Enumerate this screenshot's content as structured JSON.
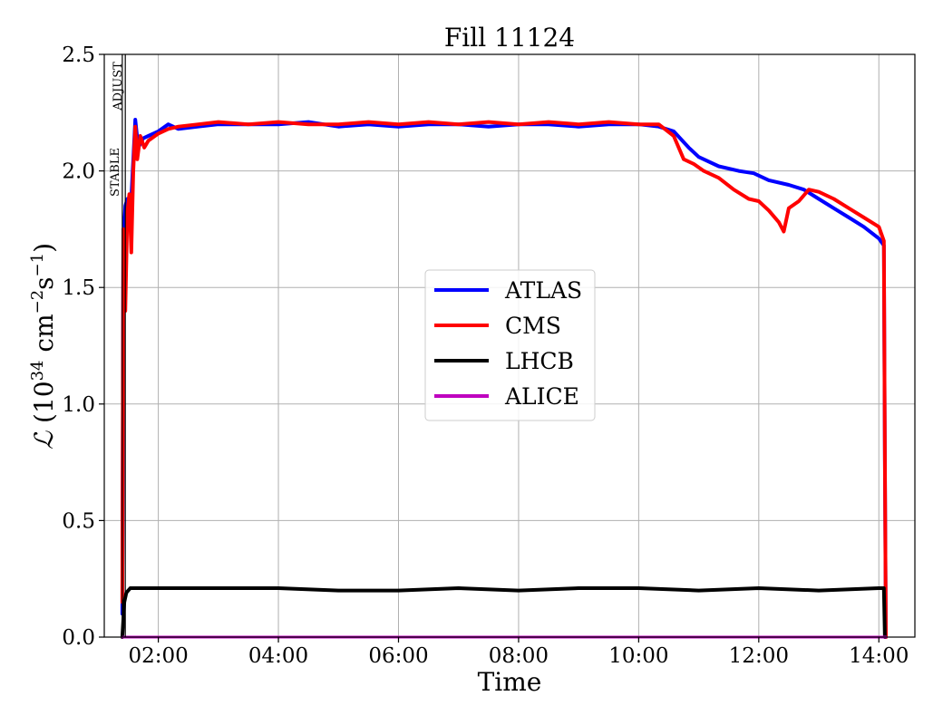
{
  "chart_data": {
    "type": "line",
    "title": "Fill 11124",
    "xlabel": "Time",
    "ylabel_symbol": "ℒ",
    "ylabel_unit_open": " (10",
    "ylabel_unit_exp1": "34",
    "ylabel_unit_mid": " cm",
    "ylabel_unit_exp2": "−2",
    "ylabel_unit_s": "s",
    "ylabel_unit_exp3": "−1",
    "ylabel_unit_close": ")",
    "xlim": [
      "01:06",
      "14:36"
    ],
    "ylim": [
      0,
      2.5
    ],
    "grid": true,
    "legend_position": "center-right",
    "x_ticks": [
      "02:00",
      "04:00",
      "06:00",
      "08:00",
      "10:00",
      "12:00",
      "14:00"
    ],
    "y_ticks": [
      "0.0",
      "0.5",
      "1.0",
      "1.5",
      "2.0",
      "2.5"
    ],
    "markers": [
      {
        "label": "ADJUST",
        "x": "01:27"
      },
      {
        "label": "STABLE",
        "x": "01:24"
      }
    ],
    "series": [
      {
        "name": "ATLAS",
        "color": "#0000ff",
        "x": [
          "01:24",
          "01:25",
          "01:27",
          "01:29",
          "01:32",
          "01:35",
          "01:37",
          "01:40",
          "01:45",
          "01:50",
          "02:00",
          "02:10",
          "02:20",
          "02:40",
          "03:00",
          "03:30",
          "04:00",
          "04:30",
          "05:00",
          "05:30",
          "06:00",
          "06:30",
          "07:00",
          "07:30",
          "08:00",
          "08:30",
          "09:00",
          "09:30",
          "10:00",
          "10:20",
          "10:35",
          "10:50",
          "11:00",
          "11:20",
          "11:40",
          "11:55",
          "12:10",
          "12:30",
          "12:45",
          "13:00",
          "13:15",
          "13:30",
          "13:45",
          "14:00",
          "14:05",
          "14:06",
          "14:07"
        ],
        "y": [
          0.1,
          1.7,
          1.85,
          1.88,
          1.8,
          2.05,
          2.22,
          2.1,
          2.14,
          2.15,
          2.17,
          2.2,
          2.18,
          2.19,
          2.2,
          2.2,
          2.2,
          2.21,
          2.19,
          2.2,
          2.19,
          2.2,
          2.2,
          2.19,
          2.2,
          2.2,
          2.19,
          2.2,
          2.2,
          2.19,
          2.17,
          2.1,
          2.06,
          2.02,
          2.0,
          1.99,
          1.96,
          1.94,
          1.92,
          1.88,
          1.84,
          1.8,
          1.76,
          1.71,
          1.68,
          0.76,
          0.0
        ]
      },
      {
        "name": "CMS",
        "color": "#ff0000",
        "x": [
          "01:24",
          "01:25",
          "01:27",
          "01:29",
          "01:31",
          "01:33",
          "01:35",
          "01:37",
          "01:39",
          "01:42",
          "01:46",
          "01:50",
          "02:00",
          "02:10",
          "02:20",
          "02:40",
          "03:00",
          "03:30",
          "04:00",
          "04:30",
          "05:00",
          "05:30",
          "06:00",
          "06:30",
          "07:00",
          "07:30",
          "08:00",
          "08:30",
          "09:00",
          "09:30",
          "10:00",
          "10:20",
          "10:35",
          "10:45",
          "10:55",
          "11:05",
          "11:20",
          "11:35",
          "11:50",
          "12:00",
          "12:10",
          "12:20",
          "12:25",
          "12:30",
          "12:40",
          "12:50",
          "13:00",
          "13:15",
          "13:30",
          "13:45",
          "14:00",
          "14:05",
          "14:06",
          "14:07"
        ],
        "y": [
          0.15,
          1.75,
          1.4,
          1.82,
          1.9,
          1.65,
          2.0,
          2.19,
          2.05,
          2.15,
          2.1,
          2.13,
          2.16,
          2.18,
          2.19,
          2.2,
          2.21,
          2.2,
          2.21,
          2.2,
          2.2,
          2.21,
          2.2,
          2.21,
          2.2,
          2.21,
          2.2,
          2.21,
          2.2,
          2.21,
          2.2,
          2.2,
          2.15,
          2.05,
          2.03,
          2.0,
          1.97,
          1.92,
          1.88,
          1.87,
          1.83,
          1.78,
          1.74,
          1.84,
          1.87,
          1.92,
          1.91,
          1.88,
          1.84,
          1.8,
          1.76,
          1.7,
          0.78,
          0.0
        ]
      },
      {
        "name": "LHCB",
        "color": "#000000",
        "x": [
          "01:24",
          "01:26",
          "01:28",
          "01:32",
          "01:40",
          "02:00",
          "03:00",
          "04:00",
          "05:00",
          "06:00",
          "07:00",
          "08:00",
          "09:00",
          "10:00",
          "11:00",
          "12:00",
          "13:00",
          "14:00",
          "14:05",
          "14:06"
        ],
        "y": [
          0.0,
          0.15,
          0.19,
          0.21,
          0.21,
          0.21,
          0.21,
          0.21,
          0.2,
          0.2,
          0.21,
          0.2,
          0.21,
          0.21,
          0.2,
          0.21,
          0.2,
          0.21,
          0.21,
          0.0
        ]
      },
      {
        "name": "ALICE",
        "color": "#bf00bf",
        "x": [
          "01:24",
          "14:07"
        ],
        "y": [
          0.0,
          0.0
        ]
      }
    ]
  }
}
